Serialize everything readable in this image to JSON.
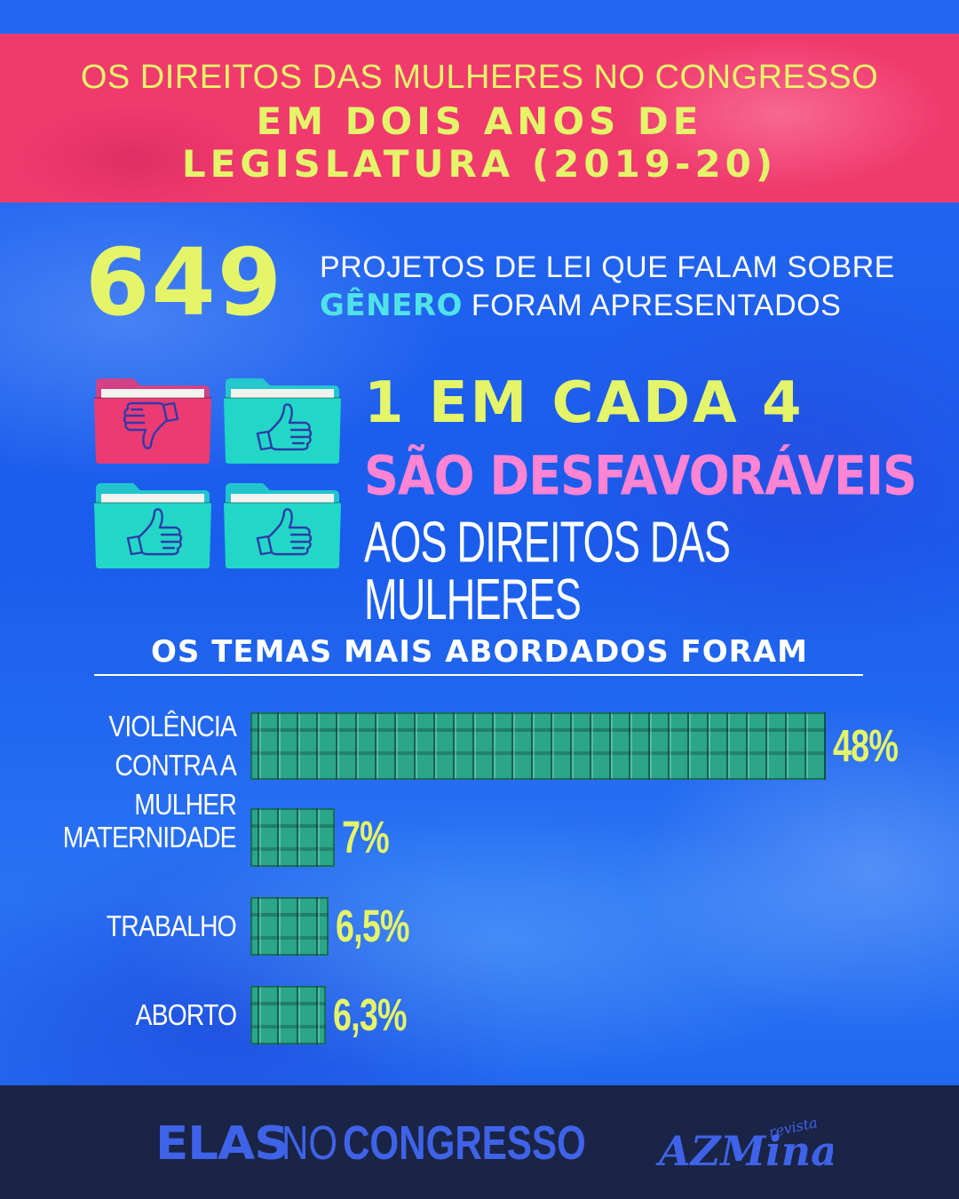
{
  "header": {
    "line1": "OS DIREITOS DAS MULHERES NO CONGRESSO",
    "line2": "EM DOIS ANOS DE",
    "line3": "LEGISLATURA (2019-20)"
  },
  "projects": {
    "count": "649",
    "line1": "PROJETOS DE LEI QUE FALAM SOBRE",
    "highlight": "GÊNERO",
    "line2_rest": " FORAM APRESENTADOS"
  },
  "ratio": {
    "line1": "1 EM CADA 4",
    "line2": "SÃO DESFAVORÁVEIS",
    "line3": "AOS DIREITOS DAS MULHERES",
    "folders": [
      {
        "icon": "thumbs-down-icon",
        "color": "#EC3A73"
      },
      {
        "icon": "thumbs-up-icon",
        "color": "#22D7C8"
      },
      {
        "icon": "thumbs-up-icon",
        "color": "#22D7C8"
      },
      {
        "icon": "thumbs-up-icon",
        "color": "#22D7C8"
      }
    ]
  },
  "themes_heading": "OS TEMAS MAIS ABORDADOS FORAM",
  "chart_data": {
    "type": "bar",
    "orientation": "horizontal",
    "title": "",
    "categories": [
      "VIOLÊNCIA\nCONTRA A MULHER",
      "MATERNIDADE",
      "TRABALHO",
      "ABORTO"
    ],
    "values": [
      48,
      7,
      6.5,
      6.3
    ],
    "value_labels": [
      "48%",
      "7%",
      "6,5%",
      "6,3%"
    ],
    "xlim": [
      0,
      48
    ],
    "grid": false,
    "legend": "none",
    "bar_color": "#2BA688",
    "label_color": "#E4F56A"
  },
  "footer": {
    "brand_elas": "ELAS",
    "brand_no": "NO",
    "brand_congresso": "CONGRESSO",
    "partner_small": "revista",
    "partner_main": "AZMina"
  },
  "colors": {
    "background": "#1E66F0",
    "header_bg": "#F03A6E",
    "accent_yellow": "#E4F56A",
    "accent_pink": "#FF84D4",
    "accent_cyan": "#4FE3E8",
    "footer_bg": "#1A2447",
    "brand_blue": "#3F63E8"
  }
}
